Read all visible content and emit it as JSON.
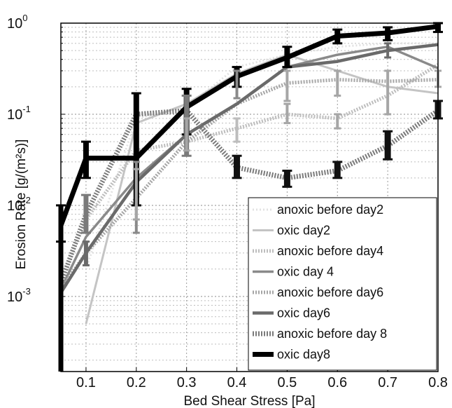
{
  "chart_data": {
    "type": "line",
    "xlabel": "Bed Shear Stress [Pa]",
    "ylabel": "Erosion Rate [g/(m²s)]",
    "xlim": [
      0.05,
      0.8
    ],
    "ylim": [
      0.00015,
      1.0
    ],
    "yscale": "log",
    "grid": true,
    "legend_position": "bottom-right",
    "x_ticks": [
      "0.1",
      "0.2",
      "0.3",
      "0.4",
      "0.5",
      "0.6",
      "0.7",
      "0.8"
    ],
    "y_ticks": [
      {
        "base": "10",
        "exp": "-3",
        "value": 0.001
      },
      {
        "base": "10",
        "exp": "-2",
        "value": 0.01
      },
      {
        "base": "10",
        "exp": "-1",
        "value": 0.1
      },
      {
        "base": "10",
        "exp": "0",
        "value": 1
      }
    ],
    "series": [
      {
        "name": "anoxic before day2",
        "color": "#e2e2e2",
        "width": 3,
        "dash": "2,3",
        "x": [
          0.1,
          0.2,
          0.3,
          0.4,
          0.5,
          0.6,
          0.7,
          0.8
        ],
        "y": [
          0.002,
          0.09,
          0.12,
          0.33,
          0.45,
          0.55,
          0.6,
          0.6
        ]
      },
      {
        "name": "oxic day2",
        "color": "#c4c4c4",
        "width": 3,
        "dash": "",
        "x": [
          0.1,
          0.2,
          0.3,
          0.4,
          0.5,
          0.6,
          0.7,
          0.8
        ],
        "y": [
          0.0005,
          0.08,
          0.13,
          0.28,
          0.45,
          0.3,
          0.2,
          0.17
        ]
      },
      {
        "name": "anoxic before day4",
        "color": "#bdbdbd",
        "width": 5,
        "dash": "2,2",
        "x": [
          0.05,
          0.1,
          0.2,
          0.3,
          0.4,
          0.5,
          0.6,
          0.7,
          0.8
        ],
        "y": [
          0.0015,
          0.007,
          0.04,
          0.05,
          0.07,
          0.1,
          0.09,
          0.16,
          0.35
        ]
      },
      {
        "name": "oxic day 4",
        "color": "#8a8a8a",
        "width": 3.5,
        "dash": "",
        "x": [
          0.05,
          0.1,
          0.2,
          0.3,
          0.4,
          0.5,
          0.6,
          0.7,
          0.8
        ],
        "y": [
          0.0012,
          0.0045,
          0.02,
          0.06,
          0.13,
          0.33,
          0.45,
          0.55,
          0.32
        ]
      },
      {
        "name": "anoxic before day6",
        "color": "#a6a6a6",
        "width": 5,
        "dash": "2,2",
        "x": [
          0.05,
          0.1,
          0.2,
          0.3,
          0.4,
          0.5,
          0.6,
          0.7,
          0.8
        ],
        "y": [
          0.0012,
          0.003,
          0.012,
          0.05,
          0.13,
          0.22,
          0.24,
          0.23,
          0.24
        ]
      },
      {
        "name": "oxic day6",
        "color": "#6a6a6a",
        "width": 4.5,
        "dash": "",
        "x": [
          0.05,
          0.1,
          0.2,
          0.3,
          0.4,
          0.5,
          0.6,
          0.7,
          0.8
        ],
        "y": [
          0.0011,
          0.003,
          0.018,
          0.06,
          0.13,
          0.33,
          0.38,
          0.5,
          0.58
        ]
      },
      {
        "name": "anoxic before day 8",
        "color": "#7a7a7a",
        "width": 7,
        "dash": "2,2",
        "x": [
          0.05,
          0.1,
          0.2,
          0.3,
          0.4,
          0.5,
          0.6,
          0.7,
          0.8
        ],
        "y": [
          0.0014,
          0.008,
          0.1,
          0.11,
          0.026,
          0.02,
          0.024,
          0.045,
          0.11
        ]
      },
      {
        "name": "oxic day8",
        "color": "#000000",
        "width": 7,
        "dash": "",
        "x": [
          0.05,
          0.1,
          0.2,
          0.3,
          0.4,
          0.5,
          0.6,
          0.7,
          0.8
        ],
        "y": [
          0.006,
          0.033,
          0.033,
          0.12,
          0.26,
          0.42,
          0.72,
          0.78,
          0.92
        ]
      }
    ],
    "error_bars": [
      {
        "x": 0.05,
        "lo": 0.004,
        "hi": 0.01,
        "color": "#000",
        "width": 7
      },
      {
        "x": 0.1,
        "lo": 0.02,
        "hi": 0.05,
        "color": "#000",
        "width": 8
      },
      {
        "x": 0.2,
        "lo": 0.01,
        "hi": 0.17,
        "color": "#000",
        "width": 8
      },
      {
        "x": 0.3,
        "lo": 0.06,
        "hi": 0.19,
        "color": "#000",
        "width": 8
      },
      {
        "x": 0.4,
        "lo": 0.2,
        "hi": 0.33,
        "color": "#000",
        "width": 8
      },
      {
        "x": 0.5,
        "lo": 0.33,
        "hi": 0.55,
        "color": "#000",
        "width": 8
      },
      {
        "x": 0.6,
        "lo": 0.6,
        "hi": 0.85,
        "color": "#000",
        "width": 8
      },
      {
        "x": 0.7,
        "lo": 0.65,
        "hi": 0.9,
        "color": "#000",
        "width": 8
      },
      {
        "x": 0.8,
        "lo": 0.8,
        "hi": 1.0,
        "color": "#000",
        "width": 8
      },
      {
        "x": 0.1,
        "lo": 0.005,
        "hi": 0.013,
        "color": "#7a7a7a",
        "width": 7
      },
      {
        "x": 0.3,
        "lo": 0.035,
        "hi": 0.16,
        "color": "#7a7a7a",
        "width": 7
      },
      {
        "x": 0.4,
        "lo": 0.02,
        "hi": 0.035,
        "color": "#111",
        "width": 9
      },
      {
        "x": 0.5,
        "lo": 0.016,
        "hi": 0.024,
        "color": "#111",
        "width": 9
      },
      {
        "x": 0.6,
        "lo": 0.02,
        "hi": 0.03,
        "color": "#111",
        "width": 9
      },
      {
        "x": 0.7,
        "lo": 0.032,
        "hi": 0.065,
        "color": "#111",
        "width": 9
      },
      {
        "x": 0.8,
        "lo": 0.09,
        "hi": 0.14,
        "color": "#111",
        "width": 9
      },
      {
        "x": 0.1,
        "lo": 0.0022,
        "hi": 0.004,
        "color": "#6a6a6a",
        "width": 6
      },
      {
        "x": 0.2,
        "lo": 0.005,
        "hi": 0.03,
        "color": "#8a8a8a",
        "width": 4
      },
      {
        "x": 0.4,
        "lo": 0.15,
        "hi": 0.3,
        "color": "#8a8a8a",
        "width": 4
      },
      {
        "x": 0.4,
        "lo": 0.05,
        "hi": 0.09,
        "color": "#bdbdbd",
        "width": 4
      },
      {
        "x": 0.5,
        "lo": 0.14,
        "hi": 0.3,
        "color": "#a6a6a6",
        "width": 4
      },
      {
        "x": 0.5,
        "lo": 0.08,
        "hi": 0.13,
        "color": "#a6a6a6",
        "width": 4
      },
      {
        "x": 0.6,
        "lo": 0.16,
        "hi": 0.3,
        "color": "#a6a6a6",
        "width": 4
      },
      {
        "x": 0.6,
        "lo": 0.07,
        "hi": 0.1,
        "color": "#a6a6a6",
        "width": 4
      },
      {
        "x": 0.7,
        "lo": 0.1,
        "hi": 0.3,
        "color": "#a6a6a6",
        "width": 4
      },
      {
        "x": 0.7,
        "lo": 0.42,
        "hi": 0.6,
        "color": "#6a6a6a",
        "width": 4
      },
      {
        "x": 0.8,
        "lo": 0.2,
        "hi": 0.3,
        "color": "#a6a6a6",
        "width": 4
      },
      {
        "x": 0.2,
        "lo": 0.007,
        "hi": 0.025,
        "color": "#a6a6a6",
        "width": 4
      },
      {
        "x": 0.3,
        "lo": 0.04,
        "hi": 0.09,
        "color": "#a6a6a6",
        "width": 4
      }
    ]
  }
}
